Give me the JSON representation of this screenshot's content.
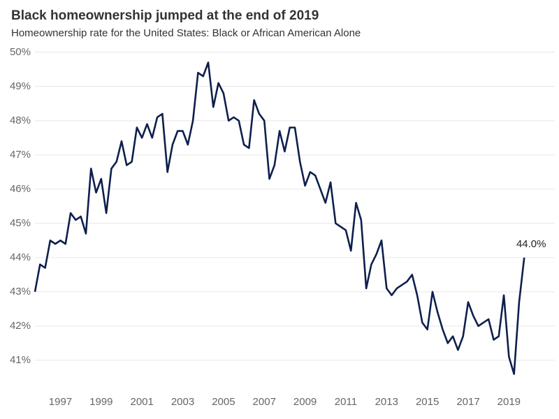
{
  "chart_data": {
    "type": "line",
    "title": "Black homeownership jumped at the end of 2019",
    "subtitle": "Homeownership rate for the United States: Black or African American Alone",
    "x": [
      1995.75,
      1996,
      1996.25,
      1996.5,
      1996.75,
      1997,
      1997.25,
      1997.5,
      1997.75,
      1998,
      1998.25,
      1998.5,
      1998.75,
      1999,
      1999.25,
      1999.5,
      1999.75,
      2000,
      2000.25,
      2000.5,
      2000.75,
      2001,
      2001.25,
      2001.5,
      2001.75,
      2002,
      2002.25,
      2002.5,
      2002.75,
      2003,
      2003.25,
      2003.5,
      2003.75,
      2004,
      2004.25,
      2004.5,
      2004.75,
      2005,
      2005.25,
      2005.5,
      2005.75,
      2006,
      2006.25,
      2006.5,
      2006.75,
      2007,
      2007.25,
      2007.5,
      2007.75,
      2008,
      2008.25,
      2008.5,
      2008.75,
      2009,
      2009.25,
      2009.5,
      2009.75,
      2010,
      2010.25,
      2010.5,
      2010.75,
      2011,
      2011.25,
      2011.5,
      2011.75,
      2012,
      2012.25,
      2012.5,
      2012.75,
      2013,
      2013.25,
      2013.5,
      2013.75,
      2014,
      2014.25,
      2014.5,
      2014.75,
      2015,
      2015.25,
      2015.5,
      2015.75,
      2016,
      2016.25,
      2016.5,
      2016.75,
      2017,
      2017.25,
      2017.5,
      2017.75,
      2018,
      2018.25,
      2018.5,
      2018.75,
      2019,
      2019.25,
      2019.5,
      2019.75
    ],
    "values": [
      43.0,
      43.8,
      43.7,
      44.5,
      44.4,
      44.5,
      44.4,
      45.3,
      45.1,
      45.2,
      44.7,
      46.6,
      45.9,
      46.3,
      45.3,
      46.6,
      46.8,
      47.4,
      46.7,
      46.8,
      47.8,
      47.5,
      47.9,
      47.5,
      48.1,
      48.2,
      46.5,
      47.3,
      47.7,
      47.7,
      47.3,
      48.0,
      49.4,
      49.3,
      49.7,
      48.4,
      49.1,
      48.8,
      48.0,
      48.1,
      48.0,
      47.3,
      47.2,
      48.6,
      48.2,
      48.0,
      46.3,
      46.7,
      47.7,
      47.1,
      47.8,
      47.8,
      46.8,
      46.1,
      46.5,
      46.4,
      46.0,
      45.6,
      46.2,
      45.0,
      44.9,
      44.8,
      44.2,
      45.6,
      45.1,
      43.1,
      43.8,
      44.1,
      44.5,
      43.1,
      42.9,
      43.1,
      43.2,
      43.3,
      43.5,
      42.9,
      42.1,
      41.9,
      43.0,
      42.4,
      41.9,
      41.5,
      41.7,
      41.3,
      41.7,
      42.7,
      42.3,
      42.0,
      42.1,
      42.2,
      41.6,
      41.7,
      42.9,
      41.1,
      40.6,
      42.7,
      44.0
    ],
    "value_labels": [
      null,
      null,
      null,
      null,
      null,
      null,
      null,
      null,
      null,
      null,
      null,
      null,
      null,
      null,
      null,
      null,
      null,
      null,
      null,
      null,
      null,
      null,
      null,
      null,
      null,
      null,
      null,
      null,
      null,
      null,
      null,
      null,
      null,
      null,
      null,
      null,
      null,
      null,
      null,
      null,
      null,
      null,
      null,
      null,
      null,
      null,
      null,
      null,
      null,
      null,
      null,
      null,
      null,
      null,
      null,
      null,
      null,
      null,
      null,
      null,
      null,
      null,
      null,
      null,
      null,
      null,
      null,
      null,
      null,
      null,
      null,
      null,
      null,
      null,
      null,
      null,
      null,
      null,
      null,
      null,
      null,
      null,
      null,
      null,
      null,
      null,
      null,
      null,
      null,
      null,
      null,
      null,
      null,
      null,
      null,
      null,
      "44.0%"
    ],
    "color": "#0e1f4d",
    "xlim": [
      1995.75,
      2021.25
    ],
    "xticks": [
      1997,
      1999,
      2001,
      2003,
      2005,
      2007,
      2009,
      2011,
      2013,
      2015,
      2017,
      2019
    ],
    "ylim": [
      40.1,
      50.2
    ],
    "yticks": [
      {
        "value": 41,
        "label": "41%"
      },
      {
        "value": 42,
        "label": "42%"
      },
      {
        "value": 43,
        "label": "43%"
      },
      {
        "value": 44,
        "label": "44%"
      },
      {
        "value": 45,
        "label": "45%"
      },
      {
        "value": 46,
        "label": "46%"
      },
      {
        "value": 47,
        "label": "47%"
      },
      {
        "value": 48,
        "label": "48%"
      },
      {
        "value": 49,
        "label": "49%"
      },
      {
        "value": 50,
        "label": "50%"
      }
    ],
    "grid": true
  }
}
